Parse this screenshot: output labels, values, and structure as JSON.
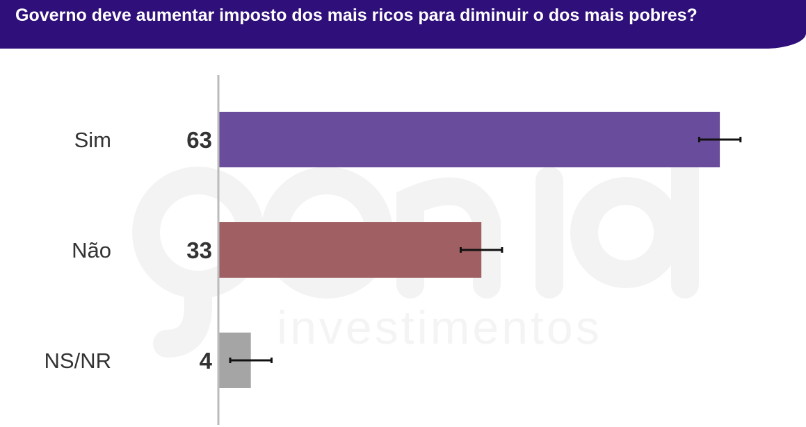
{
  "header": {
    "title": "Governo deve aumentar imposto dos mais ricos para diminuir o dos mais pobres?"
  },
  "watermark": {
    "logo": "genial",
    "tagline": "investimentos"
  },
  "chart_data": {
    "type": "bar",
    "orientation": "horizontal",
    "title": "Governo deve aumentar imposto dos mais ricos para diminuir o dos mais pobres?",
    "categories": [
      "Sim",
      "Não",
      "NS/NR"
    ],
    "values": [
      63,
      33,
      4
    ],
    "error_margin": 2.6,
    "colors": [
      "#6a4c9c",
      "#a05f63",
      "#a5a5a5"
    ],
    "xlim": [
      0,
      70
    ],
    "grid": false,
    "legend": "none"
  }
}
